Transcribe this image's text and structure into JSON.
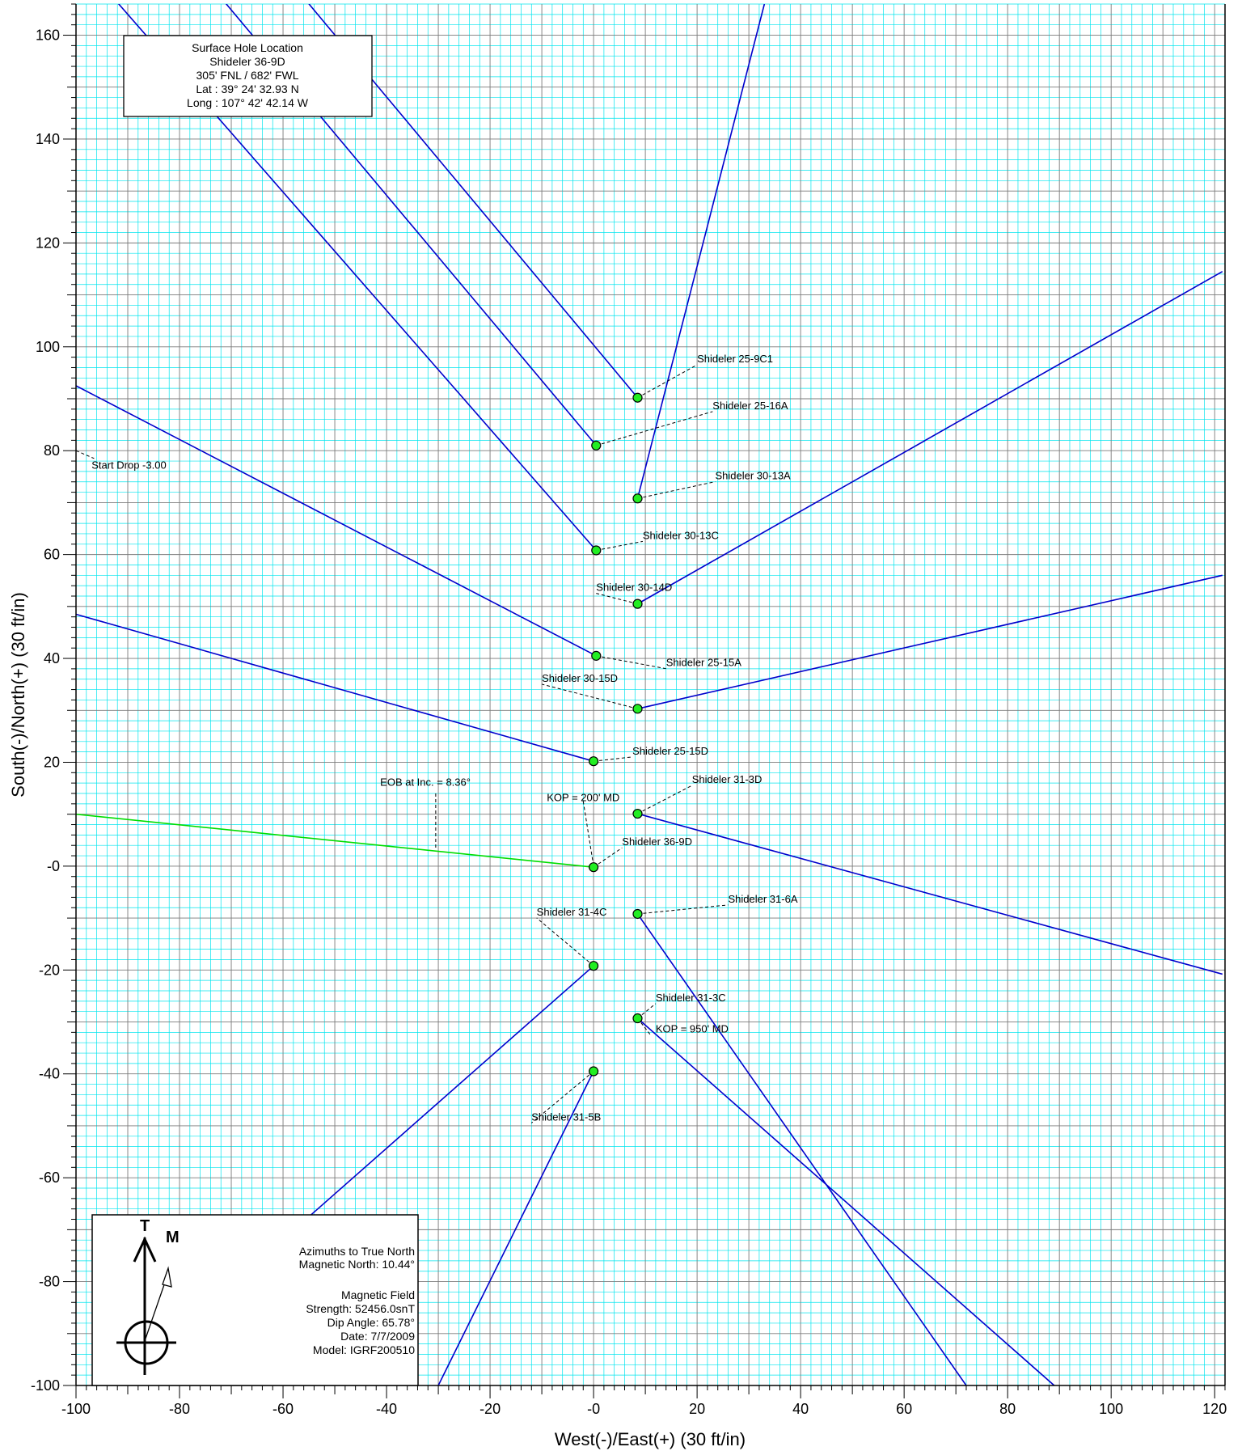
{
  "chart_data": {
    "type": "scatter",
    "xlabel": "West(-)/East(+) (30 ft/in)",
    "ylabel": "South(-)/North(+) (30 ft/in)",
    "xlim": [
      -100,
      122
    ],
    "ylim": [
      -100,
      166
    ],
    "x_ticks": [
      -100,
      -80,
      -60,
      -40,
      -20,
      0,
      20,
      40,
      60,
      80,
      100,
      120
    ],
    "x_tick_labels": [
      "-100",
      "-80",
      "-60",
      "-40",
      "-20",
      "-0",
      "20",
      "40",
      "60",
      "80",
      "100",
      "120"
    ],
    "y_ticks": [
      -100,
      -80,
      -60,
      -40,
      -20,
      0,
      20,
      40,
      60,
      80,
      100,
      120,
      140,
      160
    ],
    "y_tick_labels": [
      "-100",
      "-80",
      "-60",
      "-40",
      "-20",
      "-0",
      "20",
      "40",
      "60",
      "80",
      "100",
      "120",
      "140",
      "160"
    ],
    "grid": true,
    "colors": {
      "well_path": "#0000cc",
      "subject_path": "#00dd00",
      "surface_marker": "#22ee22",
      "minor_grid": "#00e5ee",
      "major_grid": "#7a7a7a"
    },
    "wells": [
      {
        "name": "Shideler 25-9C1",
        "surface": [
          8.5,
          90.2
        ],
        "path_end": [
          -60,
          172
        ],
        "label_anchor": [
          20,
          97
        ]
      },
      {
        "name": "Shideler 25-16A",
        "surface": [
          0.5,
          81
        ],
        "path_end": [
          -76,
          172
        ],
        "label_anchor": [
          23,
          88
        ]
      },
      {
        "name": "Shideler 30-13A",
        "surface": [
          8.5,
          70.8
        ],
        "path_end": [
          33,
          166
        ],
        "label_anchor": [
          23.5,
          74.5
        ]
      },
      {
        "name": "Shideler 30-13C",
        "surface": [
          0.5,
          60.8
        ],
        "path_end": [
          -97,
          172
        ],
        "label_anchor": [
          9.5,
          63
        ]
      },
      {
        "name": "Shideler 30-14D",
        "surface": [
          8.5,
          50.5
        ],
        "path_end": [
          121.5,
          114.5
        ],
        "label_anchor": [
          0.5,
          53
        ]
      },
      {
        "name": "Shideler 25-15A",
        "surface": [
          0.5,
          40.5
        ],
        "path_end": [
          -100,
          92.5
        ],
        "label_anchor": [
          14,
          38.5
        ]
      },
      {
        "name": "Shideler 30-15D",
        "surface": [
          8.5,
          30.3
        ],
        "path_end": [
          121.5,
          56
        ],
        "label_anchor": [
          -10,
          35.5
        ]
      },
      {
        "name": "Shideler 25-15D",
        "surface": [
          0,
          20.2
        ],
        "path_end": [
          -100,
          48.5
        ],
        "label_anchor": [
          7.5,
          21.5
        ]
      },
      {
        "name": "Shideler 31-3D",
        "surface": [
          8.5,
          10.1
        ],
        "path_end": [
          121.5,
          -20.8
        ],
        "label_anchor": [
          19,
          16
        ]
      },
      {
        "name": "Shideler 36-9D",
        "surface": [
          0,
          -0.2
        ],
        "path_end": [
          -100,
          10
        ],
        "label_anchor": [
          5.5,
          4
        ],
        "subject": true
      },
      {
        "name": "Shideler 31-6A",
        "surface": [
          8.5,
          -9.2
        ],
        "path_end": [
          72,
          -100
        ],
        "label_anchor": [
          26,
          -7
        ]
      },
      {
        "name": "Shideler 31-4C",
        "surface": [
          0,
          -19.2
        ],
        "path_end": [
          -55,
          -67.5
        ],
        "label_anchor": [
          -11,
          -9.5
        ]
      },
      {
        "name": "Shideler 31-3C",
        "surface": [
          8.5,
          -29.3
        ],
        "path_end": [
          89,
          -100
        ],
        "label_anchor": [
          12,
          -26
        ]
      },
      {
        "name": "Shideler 31-5B",
        "surface": [
          0,
          -39.5
        ],
        "path_end": [
          -30,
          -100
        ],
        "label_anchor": [
          -12,
          -49
        ]
      }
    ],
    "annotations": [
      {
        "text": "KOP = 200' MD",
        "at": [
          -2,
          12.5
        ]
      },
      {
        "text": "EOB at Inc. = 8.36°",
        "at": [
          -32.5,
          15.5
        ]
      },
      {
        "text": "Start Drop -3.00",
        "at": [
          -97,
          76.5
        ]
      },
      {
        "text": "KOP = 950' MD",
        "at": [
          12,
          -32
        ]
      }
    ]
  },
  "surface_box": {
    "lines": [
      "Surface Hole Location",
      "Shideler 36-9D",
      "305' FNL / 682' FWL",
      "Lat :  39° 24' 32.93 N",
      "Long :  107° 42' 42.14 W"
    ]
  },
  "north_box": {
    "true_north_letter": "T",
    "mag_north_letter": "M",
    "azimuth_lines": [
      "Azimuths to True North",
      "Magnetic North: 10.44°"
    ],
    "field_lines": [
      "Magnetic Field",
      "Strength: 52456.0snT",
      "Dip Angle: 65.78°",
      "Date: 7/7/2009",
      "Model: IGRF200510"
    ]
  }
}
